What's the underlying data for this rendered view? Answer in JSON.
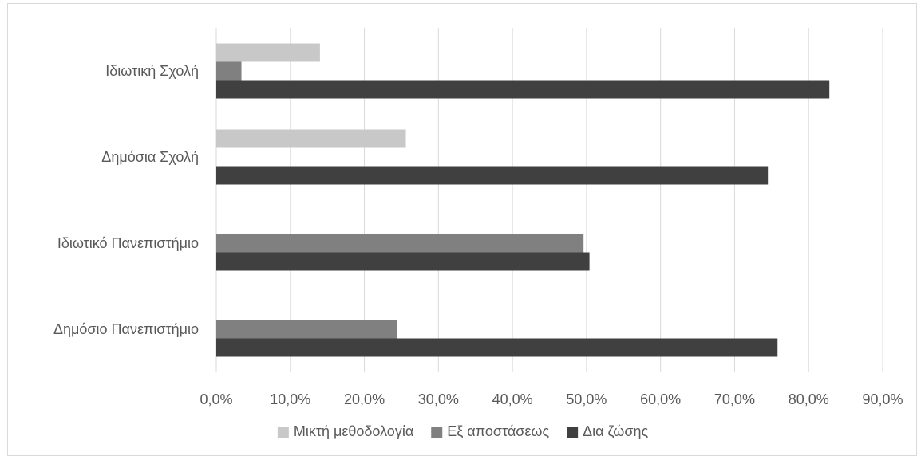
{
  "chart_data": {
    "type": "bar",
    "orientation": "horizontal",
    "categories": [
      "Ιδιωτική Σχολή",
      "Δημόσια Σχολή",
      "Ιδιωτικό Πανεπιστήμιο",
      "Δημόσιο Πανεπιστήμιο"
    ],
    "series": [
      {
        "name": "Μικτή μεθοδολογία",
        "color": "#c8c8c8",
        "values": [
          14.0,
          25.6,
          0,
          0
        ]
      },
      {
        "name": "Εξ αποστάσεως",
        "color": "#808080",
        "values": [
          3.4,
          0,
          49.6,
          24.4
        ]
      },
      {
        "name": "Δια ζώσης",
        "color": "#404040",
        "values": [
          82.8,
          74.5,
          50.4,
          75.8
        ]
      }
    ],
    "xlim": [
      0,
      90
    ],
    "x_ticks": [
      "0,0%",
      "10,0%",
      "20,0%",
      "30,0%",
      "40,0%",
      "50,0%",
      "60,0%",
      "70,0%",
      "80,0%",
      "90,0%"
    ],
    "grid": true,
    "legend_position": "bottom",
    "title": "",
    "xlabel": "",
    "ylabel": ""
  }
}
